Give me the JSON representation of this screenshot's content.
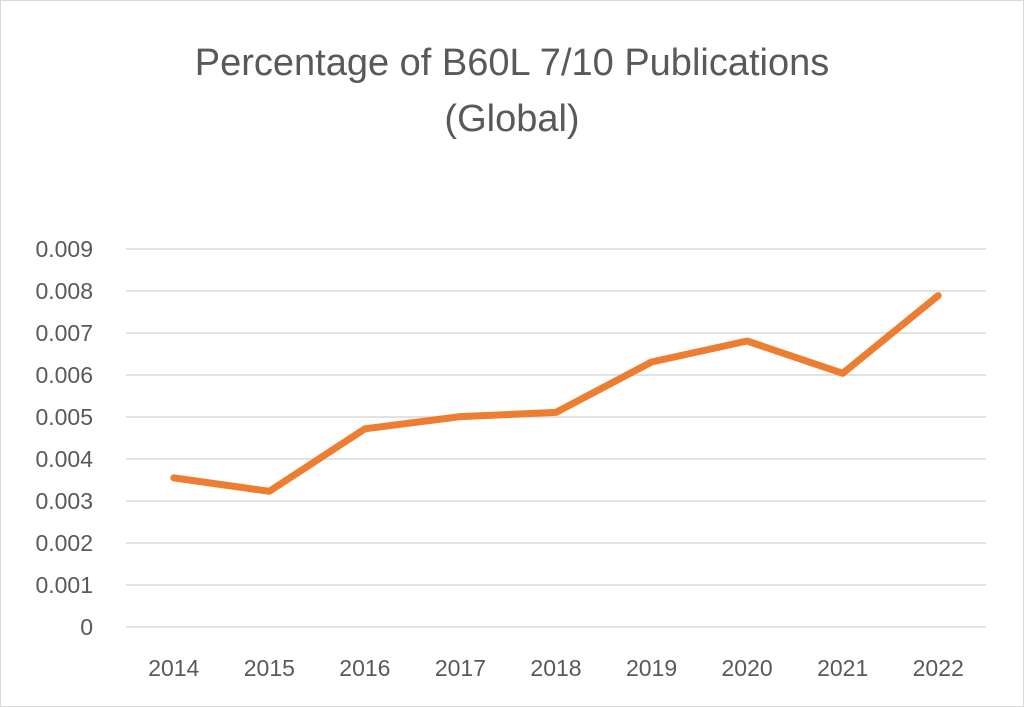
{
  "chart_data": {
    "type": "line",
    "title_lines": [
      "Percentage of B60L 7/10 Publications",
      "(Global)"
    ],
    "x": [
      "2014",
      "2015",
      "2016",
      "2017",
      "2018",
      "2019",
      "2020",
      "2021",
      "2022"
    ],
    "series": [
      {
        "values": [
          0.00355,
          0.00323,
          0.00472,
          0.00501,
          0.00511,
          0.00631,
          0.00681,
          0.00604,
          0.00789
        ],
        "color": "#ED7D31"
      }
    ],
    "ylim": [
      0,
      0.009
    ],
    "yticks": [
      "0",
      "0.001",
      "0.002",
      "0.003",
      "0.004",
      "0.005",
      "0.006",
      "0.007",
      "0.008",
      "0.009"
    ],
    "grid": "horizontal",
    "legend": "none",
    "gridColor": "#d9d9d9"
  }
}
